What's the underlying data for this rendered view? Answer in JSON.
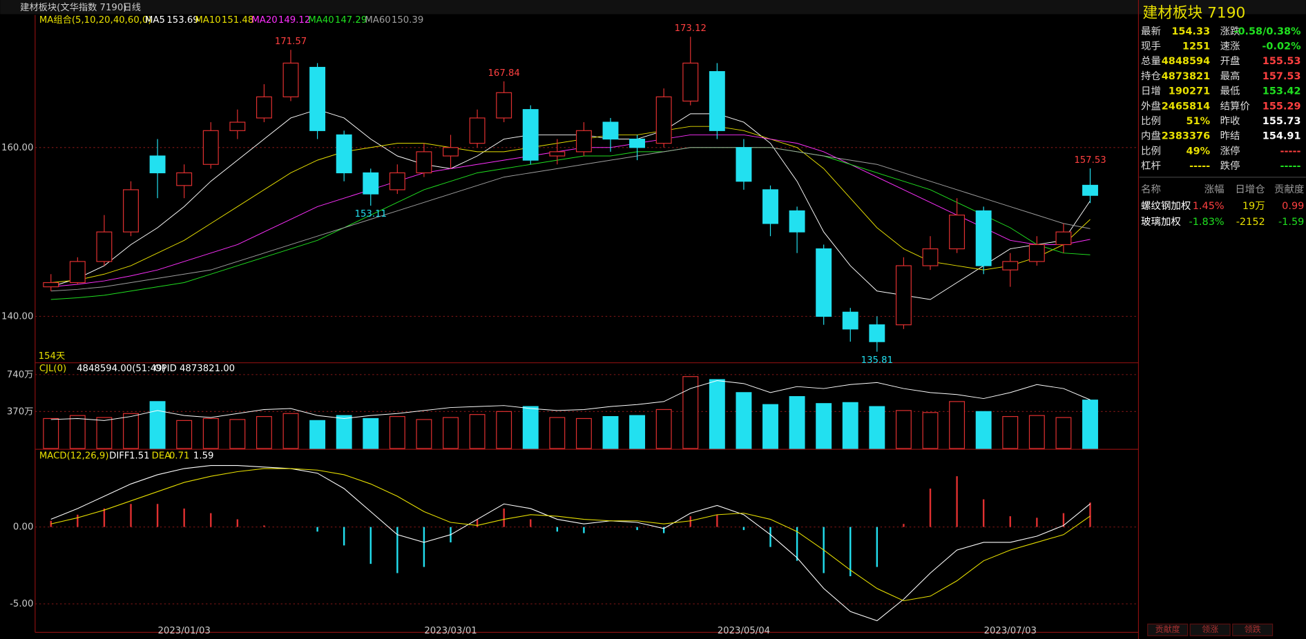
{
  "header": {
    "title": "建材板块(文华指数 7190)",
    "period": "日线"
  },
  "chart_data": {
    "type": "candlestick",
    "days_label": "154天",
    "ma_label": "MA组合(5,10,20,40,60,0)",
    "categories": [
      null,
      null,
      null,
      null,
      null,
      "2023/01/03",
      null,
      null,
      null,
      null,
      null,
      null,
      null,
      null,
      null,
      "2023/03/01",
      null,
      null,
      null,
      null,
      null,
      null,
      null,
      null,
      null,
      null,
      "2023/05/04",
      null,
      null,
      null,
      null,
      null,
      null,
      null,
      null,
      null,
      "2023/07/03",
      null,
      null,
      null
    ],
    "open": [
      143.5,
      144,
      146.5,
      150,
      159,
      155.5,
      158,
      162,
      163.5,
      166,
      169.5,
      161.5,
      157,
      155,
      157,
      159,
      160.5,
      163.5,
      164.5,
      159,
      159.5,
      163,
      161,
      160.5,
      165.5,
      169,
      160,
      155,
      152.5,
      148,
      140.5,
      139,
      139,
      146,
      148,
      152.5,
      145.5,
      146.5,
      148.5,
      155.53
    ],
    "high": [
      145,
      147,
      152,
      156,
      161,
      158,
      163,
      164.5,
      167.5,
      171.57,
      170,
      162,
      157.5,
      158,
      160.5,
      161.5,
      164.5,
      167.84,
      165,
      161,
      163,
      163.5,
      161.5,
      167,
      173.12,
      170,
      161,
      155.5,
      153,
      148.5,
      141,
      140,
      147,
      149.5,
      154,
      153,
      147.5,
      149.5,
      151,
      157.53
    ],
    "low": [
      143,
      143.8,
      146,
      149.5,
      154,
      154,
      157.5,
      161,
      163,
      165.5,
      161,
      156,
      153.11,
      154.5,
      156.5,
      157.5,
      160,
      163,
      158,
      158,
      159,
      159.5,
      158.5,
      160,
      165,
      161,
      155,
      149.5,
      147.5,
      139,
      137,
      135.81,
      138.5,
      145.5,
      147.5,
      145,
      143.5,
      146,
      147.5,
      153.42
    ],
    "close": [
      144,
      146.5,
      150,
      155,
      157,
      157,
      162,
      163,
      166,
      170,
      162,
      157,
      154.5,
      157,
      159.5,
      160,
      163.5,
      166.5,
      158.5,
      159.5,
      162,
      161,
      160,
      166,
      170,
      162,
      156,
      151,
      150,
      140,
      138.5,
      137,
      146,
      148,
      152,
      146,
      146.5,
      148.5,
      150,
      154.33
    ],
    "up_color": "#e03030",
    "down_color": "#22e0f0",
    "ylim": [
      134.7,
      175.7
    ],
    "yticks": [
      {
        "value": 140,
        "label": "140.00"
      },
      {
        "value": 160,
        "label": "160.00"
      }
    ],
    "ma_series": [
      {
        "name": "MA5",
        "color": "#ffffff",
        "values": [
          143.5,
          144.5,
          146,
          148.5,
          150.5,
          153,
          156,
          158.5,
          161,
          163.5,
          164.5,
          163.5,
          161,
          159,
          158,
          157.5,
          159,
          161,
          161.5,
          161.5,
          161.5,
          161,
          161,
          162,
          164,
          164,
          163,
          160.5,
          156,
          150,
          146,
          143,
          142.5,
          142,
          144,
          146,
          148,
          148.5,
          149,
          153.69
        ]
      },
      {
        "name": "MA10",
        "color": "#e8e000",
        "values": [
          144,
          144.3,
          145,
          146,
          147.5,
          149,
          151,
          153,
          155,
          157,
          158.5,
          159.5,
          160,
          160.5,
          160.5,
          160,
          159.5,
          159.5,
          160,
          160.5,
          161,
          161.5,
          161.5,
          162,
          162.5,
          162.5,
          162,
          161,
          160,
          157.5,
          154,
          150.5,
          148,
          146.5,
          146,
          145.5,
          146,
          147,
          148.5,
          151.48
        ]
      },
      {
        "name": "MA20",
        "color": "#ff30ff",
        "values": [
          143.5,
          143.8,
          144.2,
          144.8,
          145.5,
          146.5,
          147.5,
          148.5,
          150,
          151.5,
          153,
          154,
          155,
          156,
          157,
          157.5,
          158,
          158.5,
          159,
          159.5,
          160,
          160,
          160.5,
          161,
          161.5,
          161.5,
          161.5,
          161,
          160.5,
          159.5,
          158,
          156.5,
          155,
          153.5,
          152,
          150.5,
          149,
          148.5,
          148.5,
          149.12
        ]
      },
      {
        "name": "MA40",
        "color": "#20e020",
        "values": [
          142,
          142.2,
          142.5,
          143,
          143.5,
          144,
          145,
          146,
          147,
          148,
          149,
          150.5,
          152,
          153.5,
          155,
          156,
          157,
          157.5,
          158,
          158.5,
          159,
          159,
          159.5,
          159.5,
          160,
          160,
          160,
          160,
          159.5,
          159,
          158,
          157,
          156,
          155,
          153.5,
          152,
          150.5,
          148.5,
          147.5,
          147.29
        ]
      },
      {
        "name": "MA60",
        "color": "#a0a0a0",
        "values": [
          143,
          143.2,
          143.5,
          144,
          144.5,
          145,
          145.5,
          146.5,
          147.5,
          148.5,
          149.5,
          150.5,
          151.5,
          152.5,
          153.5,
          154.5,
          155.5,
          156.5,
          157,
          157.5,
          158,
          158.5,
          159,
          159.5,
          160,
          160,
          160,
          160,
          159.5,
          159,
          158.5,
          158,
          157,
          156,
          155,
          154,
          153,
          152,
          151,
          150.39
        ]
      }
    ]
  },
  "volume_chart": {
    "type": "bar",
    "label": "CJL(0)",
    "info": "4848594.00(51:49)",
    "opid_label": "OPID 4873821.00",
    "values": [
      300,
      330,
      310,
      350,
      470,
      280,
      300,
      290,
      320,
      350,
      280,
      330,
      300,
      320,
      290,
      310,
      340,
      370,
      420,
      310,
      300,
      320,
      330,
      390,
      720,
      690,
      560,
      440,
      520,
      450,
      460,
      420,
      380,
      360,
      470,
      370,
      320,
      330,
      310,
      484.86
    ],
    "opid": [
      290,
      300,
      280,
      320,
      380,
      330,
      310,
      350,
      390,
      400,
      330,
      300,
      330,
      350,
      380,
      410,
      420,
      430,
      400,
      380,
      390,
      420,
      440,
      470,
      600,
      680,
      650,
      560,
      620,
      600,
      640,
      660,
      600,
      560,
      540,
      500,
      560,
      640,
      600,
      487.38
    ],
    "ylim": [
      0,
      850
    ],
    "yticks": [
      {
        "value": 370,
        "label": "370万"
      },
      {
        "value": 740,
        "label": "740万"
      }
    ]
  },
  "macd_chart": {
    "type": "line",
    "label": "MACD(12,26,9)",
    "diff_name": "DIFF",
    "dea_name": "DEA",
    "hist": [
      0.4,
      0.8,
      1.2,
      1.5,
      1.5,
      1.2,
      0.9,
      0.5,
      0.1,
      0,
      -0.3,
      -1.2,
      -2.4,
      -3,
      -2.6,
      -1,
      0.5,
      1.2,
      0.5,
      -0.3,
      -0.4,
      0,
      -0.2,
      -0.4,
      0.7,
      0.8,
      -0.2,
      -1.3,
      -2.2,
      -3,
      -3.2,
      -2.6,
      0.2,
      2.5,
      3.3,
      1.8,
      0.7,
      0.6,
      0.9,
      1.59
    ],
    "diff": [
      0.5,
      1.2,
      2,
      2.8,
      3.4,
      3.8,
      4,
      4,
      3.9,
      3.8,
      3.5,
      2.5,
      1,
      -0.5,
      -1,
      -0.5,
      0.5,
      1.5,
      1.2,
      0.5,
      0.2,
      0.4,
      0.3,
      -0.1,
      0.9,
      1.4,
      0.8,
      -0.5,
      -2,
      -4,
      -5.5,
      -6.1,
      -4.7,
      -3,
      -1.5,
      -1,
      -1,
      -0.6,
      0.1,
      1.51
    ],
    "dea": [
      0.2,
      0.6,
      1.1,
      1.7,
      2.3,
      2.9,
      3.3,
      3.6,
      3.8,
      3.8,
      3.7,
      3.4,
      2.8,
      2,
      1,
      0.3,
      0.1,
      0.5,
      0.8,
      0.7,
      0.5,
      0.4,
      0.4,
      0.2,
      0.4,
      0.8,
      0.9,
      0.5,
      -0.3,
      -1.5,
      -2.8,
      -4,
      -4.8,
      -4.5,
      -3.5,
      -2.2,
      -1.5,
      -1,
      -0.5,
      0.71
    ],
    "ylim": [
      -6.8,
      5.0
    ],
    "yticks": [
      {
        "value": 0,
        "label": "0.00"
      },
      {
        "value": -5,
        "label": "-5.00"
      }
    ]
  },
  "quote": {
    "title": "建材板块 7190",
    "rows": [
      [
        {
          "label": "最新",
          "value": 154.33,
          "color": "#e8e000"
        },
        {
          "label": "涨跌",
          "value": "-0.58/0.38%",
          "color": "#20e020"
        }
      ],
      [
        {
          "label": "现手",
          "value": 1251,
          "color": "#e8e000"
        },
        {
          "label": "速涨",
          "value": "-0.02%",
          "color": "#20e020"
        }
      ],
      [
        {
          "label": "总量",
          "value": 4848594,
          "color": "#e8e000"
        },
        {
          "label": "开盘",
          "value": 155.53,
          "color": "#ff4040"
        }
      ],
      [
        {
          "label": "持仓",
          "value": 4873821,
          "color": "#e8e000"
        },
        {
          "label": "最高",
          "value": 157.53,
          "color": "#ff4040"
        }
      ],
      [
        {
          "label": "日增",
          "value": 190271,
          "color": "#e8e000"
        },
        {
          "label": "最低",
          "value": 153.42,
          "color": "#20e020"
        }
      ],
      [
        {
          "label": "外盘",
          "value": 2465814,
          "color": "#e8e000"
        },
        {
          "label": "结算价",
          "value": 155.29,
          "color": "#ff4040"
        }
      ],
      [
        {
          "label": "比例",
          "value": "51%",
          "color": "#e8e000"
        },
        {
          "label": "昨收",
          "value": 155.73,
          "color": "#ffffff"
        }
      ],
      [
        {
          "label": "内盘",
          "value": 2383376,
          "color": "#e8e000"
        },
        {
          "label": "昨结",
          "value": 154.91,
          "color": "#ffffff"
        }
      ],
      [
        {
          "label": "比例",
          "value": "49%",
          "color": "#e8e000"
        },
        {
          "label": "涨停",
          "value": "-----",
          "color": "#ff4040"
        }
      ],
      [
        {
          "label": "杠杆",
          "value": "-----",
          "color": "#e8e000"
        },
        {
          "label": "跌停",
          "value": "-----",
          "color": "#20e020"
        }
      ]
    ]
  },
  "components": {
    "columns": [
      "名称",
      "涨幅",
      "日增仓",
      "贡献度"
    ],
    "rows": [
      [
        {
          "text": "螺纹钢加权",
          "color": "#ffffff"
        },
        {
          "text": "1.45%",
          "color": "#ff4040"
        },
        {
          "text": "19万",
          "color": "#e8e000"
        },
        {
          "text": 0.99,
          "color": "#ff4040"
        }
      ],
      [
        {
          "text": "玻璃加权",
          "color": "#ffffff"
        },
        {
          "text": "-1.83%",
          "color": "#20e020"
        },
        {
          "text": -2152,
          "color": "#e8e000"
        },
        {
          "text": -1.59,
          "color": "#20e020"
        }
      ]
    ]
  },
  "tabs": [
    "贡献度",
    "领涨",
    "领跌"
  ]
}
